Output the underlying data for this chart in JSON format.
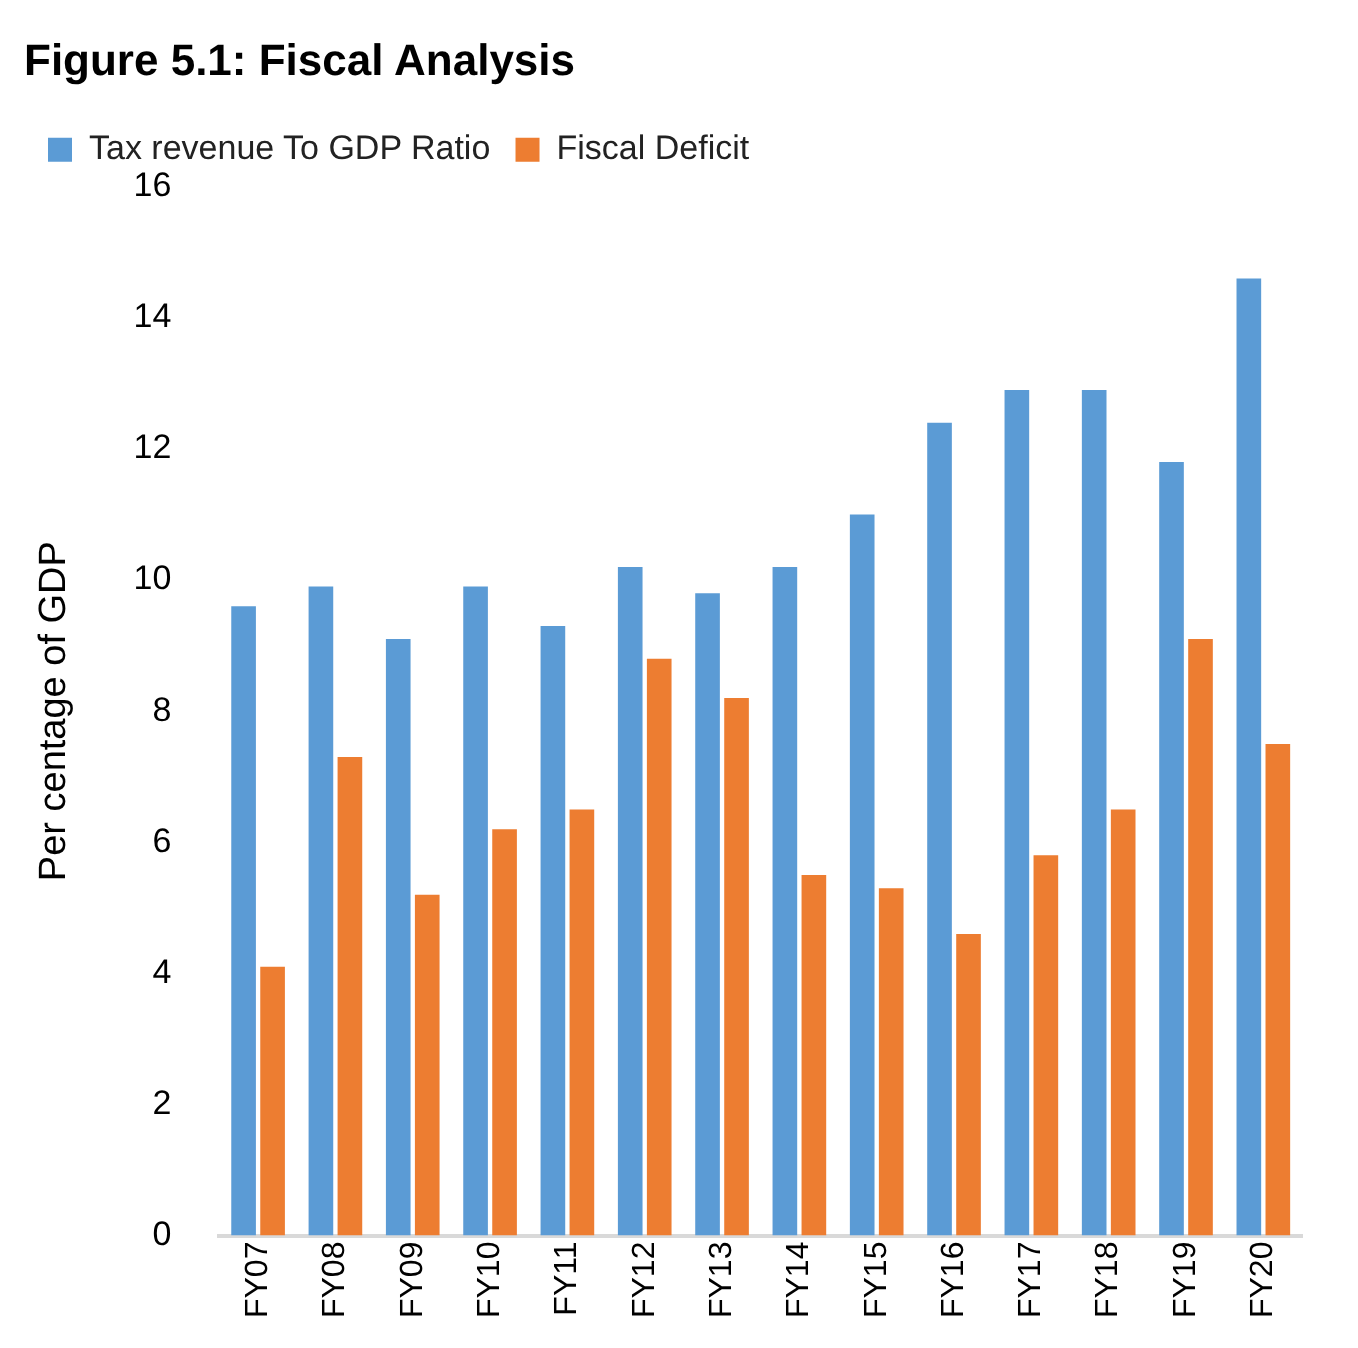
{
  "chart_data": {
    "type": "bar",
    "title": "Figure 5.1: Fiscal Analysis",
    "ylabel": "Per centage of GDP",
    "categories": [
      "FY07",
      "FY08",
      "FY09",
      "FY10",
      "FY11",
      "FY12",
      "FY13",
      "FY14",
      "FY15",
      "FY16",
      "FY17",
      "FY18",
      "FY19",
      "FY20"
    ],
    "series": [
      {
        "name": "Tax revenue To GDP Ratio",
        "color": "#5b9bd5",
        "values": [
          9.6,
          9.9,
          9.1,
          9.9,
          9.3,
          10.2,
          9.8,
          10.2,
          11.0,
          12.4,
          12.9,
          12.9,
          11.8,
          14.6
        ]
      },
      {
        "name": "Fiscal Deficit",
        "color": "#ed7d31",
        "values": [
          4.1,
          7.3,
          5.2,
          6.2,
          6.5,
          8.8,
          8.2,
          5.5,
          5.3,
          4.6,
          5.8,
          6.5,
          9.1,
          7.5
        ]
      }
    ],
    "ylim": [
      0,
      16
    ],
    "yticks": [
      0,
      2,
      4,
      6,
      8,
      10,
      12,
      14,
      16
    ],
    "grid": false,
    "legend": "top left"
  }
}
